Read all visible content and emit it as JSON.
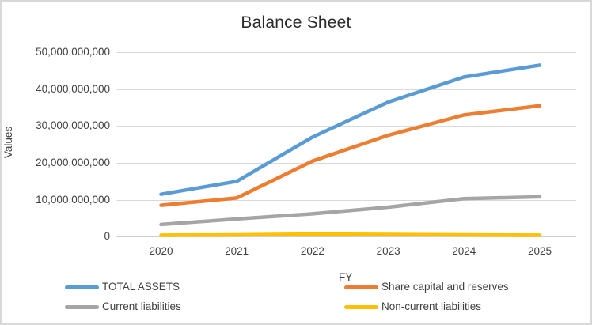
{
  "window": {
    "background": "#ffffff",
    "border_color": "#d8d8d8"
  },
  "chart_data": {
    "type": "line",
    "title": "Balance Sheet",
    "xlabel": "FY",
    "ylabel": "Values",
    "categories": [
      "2020",
      "2021",
      "2022",
      "2023",
      "2024",
      "2025"
    ],
    "series": [
      {
        "name": "TOTAL ASSETS",
        "color": "#5B9BD5",
        "values": [
          11500000000,
          15000000000,
          27000000000,
          36500000000,
          43300000000,
          46500000000
        ]
      },
      {
        "name": "Share capital and reserves",
        "color": "#ED7D31",
        "values": [
          8500000000,
          10500000000,
          20500000000,
          27500000000,
          33000000000,
          35500000000
        ]
      },
      {
        "name": "Current liabilities",
        "color": "#A5A5A5",
        "values": [
          3300000000,
          4800000000,
          6200000000,
          8000000000,
          10300000000,
          10800000000
        ]
      },
      {
        "name": "Non-current liabilities",
        "color": "#FFC000",
        "values": [
          400000000,
          500000000,
          700000000,
          600000000,
          500000000,
          400000000
        ]
      }
    ],
    "ylim": [
      0,
      50000000000
    ],
    "y_ticks": [
      0,
      10000000000,
      20000000000,
      30000000000,
      40000000000,
      50000000000
    ],
    "y_tick_labels": [
      "0",
      "10,000,000,000",
      "20,000,000,000",
      "30,000,000,000",
      "40,000,000,000",
      "50,000,000,000"
    ],
    "grid": true,
    "gridline_color": "#D9D9D9",
    "axis_line_color": "#CDCDCD",
    "legend_position": "bottom-two-columns",
    "text_color": "#404040",
    "title_color": "#2b2b2b"
  }
}
